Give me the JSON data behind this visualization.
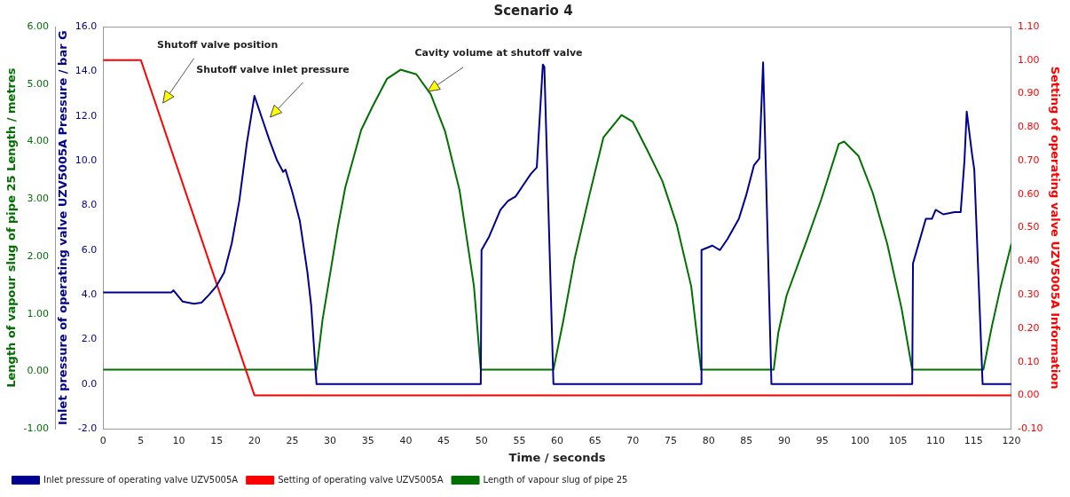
{
  "chart_data": {
    "type": "line",
    "title": "Scenario 4",
    "xlabel": "Time / seconds",
    "ylabel": "Inlet pressure of operating valve UZV5005A Pressure / bar G",
    "y2label": "Setting of operating valve UZV5005A Information",
    "y3label": "Length of vapour slug of pipe 25 Length / metres",
    "xlim": [
      0,
      120
    ],
    "xticks": [
      0,
      5,
      10,
      15,
      20,
      25,
      30,
      35,
      40,
      45,
      50,
      55,
      60,
      65,
      70,
      75,
      80,
      85,
      90,
      95,
      100,
      105,
      110,
      115,
      120
    ],
    "ylim": [
      -2,
      16
    ],
    "yticks": [
      {
        "value": -2,
        "label": "-2.0"
      },
      {
        "value": 0,
        "label": "0.0"
      },
      {
        "value": 2,
        "label": "2.0"
      },
      {
        "value": 4,
        "label": "4.0"
      },
      {
        "value": 6,
        "label": "6.0"
      },
      {
        "value": 8,
        "label": "8.0"
      },
      {
        "value": 10,
        "label": "10.0"
      },
      {
        "value": 12,
        "label": "12.0"
      },
      {
        "value": 14,
        "label": "14.0"
      },
      {
        "value": 16,
        "label": "16.0"
      }
    ],
    "y2lim": [
      -0.1,
      1.1
    ],
    "y2ticks": [
      {
        "value": -0.1,
        "label": "-0.10"
      },
      {
        "value": 0,
        "label": "0.00"
      },
      {
        "value": 0.1,
        "label": "0.10"
      },
      {
        "value": 0.2,
        "label": "0.20"
      },
      {
        "value": 0.3,
        "label": "0.30"
      },
      {
        "value": 0.4,
        "label": "0.40"
      },
      {
        "value": 0.5,
        "label": "0.50"
      },
      {
        "value": 0.6,
        "label": "0.60"
      },
      {
        "value": 0.7,
        "label": "0.70"
      },
      {
        "value": 0.8,
        "label": "0.80"
      },
      {
        "value": 0.9,
        "label": "0.90"
      },
      {
        "value": 1,
        "label": "1.00"
      },
      {
        "value": 1.1,
        "label": "1.10"
      }
    ],
    "y3lim": [
      -1,
      6
    ],
    "y3ticks": [
      {
        "value": -1,
        "label": "-1.00"
      },
      {
        "value": 0,
        "label": "0.00"
      },
      {
        "value": 1,
        "label": "1.00"
      },
      {
        "value": 2,
        "label": "2.00"
      },
      {
        "value": 3,
        "label": "3.00"
      },
      {
        "value": 4,
        "label": "4.00"
      },
      {
        "value": 5,
        "label": "5.00"
      },
      {
        "value": 6,
        "label": "6.00"
      }
    ],
    "grid": false,
    "legend": "bottom",
    "marker": "none",
    "line_style": "solid",
    "series": [
      {
        "name": "Inlet pressure of operating valve UZV5005A",
        "color": "#000090",
        "axis": "y",
        "x": [
          0,
          9,
          9.3,
          10.5,
          12,
          13,
          14,
          15,
          16,
          17,
          18,
          19,
          20,
          21,
          22,
          23,
          23.8,
          24.1,
          25,
          26,
          27,
          27.5,
          28.2,
          49.9,
          50,
          51,
          51.5,
          52.5,
          53.5,
          54.5,
          55.5,
          56.5,
          57.3,
          58.1,
          58.3,
          59.5,
          79,
          79.06,
          80.5,
          81.5,
          82.5,
          84,
          85,
          86,
          86.7,
          87.2,
          88.3,
          106.9,
          107,
          108.7,
          109.5,
          110,
          111,
          112.5,
          113.3,
          113.8,
          114.1,
          114.8,
          115.1,
          116.2,
          120
        ],
        "values": [
          4.1,
          4.1,
          4.2,
          3.7,
          3.6,
          3.65,
          4.0,
          4.4,
          5.0,
          6.3,
          8.2,
          10.8,
          12.9,
          11.9,
          10.9,
          10.0,
          9.5,
          9.6,
          8.6,
          7.3,
          5.0,
          3.5,
          0,
          0,
          6.0,
          6.6,
          7.0,
          7.8,
          8.2,
          8.4,
          8.9,
          9.4,
          9.7,
          14.3,
          14.2,
          0,
          0,
          6.0,
          6.2,
          6.0,
          6.5,
          7.4,
          8.5,
          9.8,
          10.1,
          14.4,
          0,
          0,
          5.4,
          7.4,
          7.4,
          7.8,
          7.6,
          7.7,
          7.7,
          10.0,
          12.2,
          10.3,
          9.6,
          0,
          0
        ]
      },
      {
        "name": "Setting of operating valve UZV5005A",
        "color": "#ff0000",
        "axis": "y2",
        "x": [
          0,
          5,
          20,
          120
        ],
        "values": [
          1,
          1,
          0,
          0
        ]
      },
      {
        "name": "Length of vapour slug of pipe 25",
        "color": "#007000",
        "axis": "y3",
        "x": [
          0,
          28.2,
          29,
          30,
          31,
          32,
          34.1,
          35.6,
          37.5,
          39.3,
          41.4,
          43.3,
          45.2,
          47.1,
          49,
          49.9,
          59.5,
          60.8,
          62.3,
          64.2,
          66.1,
          68.5,
          70,
          71.9,
          73.9,
          75.8,
          77.7,
          79,
          88.6,
          89.2,
          90.3,
          93,
          94.9,
          97.2,
          97.9,
          99.8,
          101.7,
          103.6,
          105.5,
          106.9,
          116.3,
          117.4,
          118.6,
          120
        ],
        "values": [
          0.03,
          0.03,
          0.9,
          1.7,
          2.5,
          3.2,
          4.2,
          4.61,
          5.09,
          5.25,
          5.17,
          4.82,
          4.17,
          3.15,
          1.48,
          0.03,
          0.03,
          0.88,
          1.96,
          3.04,
          4.07,
          4.46,
          4.34,
          3.85,
          3.31,
          2.55,
          1.48,
          0.03,
          0.03,
          0.67,
          1.32,
          2.29,
          3.0,
          3.96,
          4.0,
          3.75,
          3.1,
          2.22,
          1.09,
          0.03,
          0.03,
          0.77,
          1.48,
          2.22
        ]
      }
    ],
    "annotations": [
      "Shutoff valve position",
      "Shutoff valve inlet pressure",
      {
        "text": "Cavity volume at shutoff valve",
        "x": 42.9,
        "y": 13.1
      }
    ]
  }
}
